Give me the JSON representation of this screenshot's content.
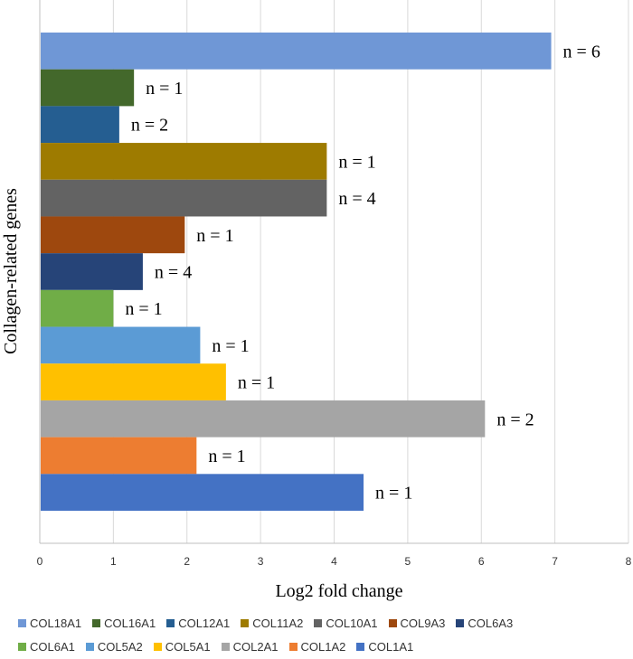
{
  "chart_data": {
    "type": "bar",
    "orientation": "horizontal",
    "title": "",
    "xlabel": "Log2 fold change",
    "ylabel": "Collagen-related genes",
    "xlim": [
      0,
      8
    ],
    "xticks": [
      0,
      1,
      2,
      3,
      4,
      5,
      6,
      7,
      8
    ],
    "grid": true,
    "legend_position": "bottom",
    "categories": [
      "COL18A1",
      "COL16A1",
      "COL12A1",
      "COL11A2",
      "COL10A1",
      "COL9A3",
      "COL6A3",
      "COL6A1",
      "COL5A2",
      "COL5A1",
      "COL2A1",
      "COL1A2",
      "COL1A1"
    ],
    "values": [
      6.95,
      1.28,
      1.08,
      3.9,
      3.9,
      1.97,
      1.4,
      1.0,
      2.18,
      2.53,
      6.05,
      2.13,
      4.4
    ],
    "labels": [
      "n = 6",
      "n = 1",
      "n = 2",
      "n = 1",
      "n = 4",
      "n = 1",
      "n = 4",
      "n = 1",
      "n = 1",
      "n = 1",
      "n = 2",
      "n = 1",
      "n = 1"
    ],
    "colors": [
      "#6F97D6",
      "#43682B",
      "#255E91",
      "#9E7B00",
      "#636363",
      "#9E480E",
      "#264478",
      "#70AD47",
      "#5B9BD5",
      "#FFC000",
      "#A5A5A5",
      "#ED7D31",
      "#4472C4"
    ]
  }
}
